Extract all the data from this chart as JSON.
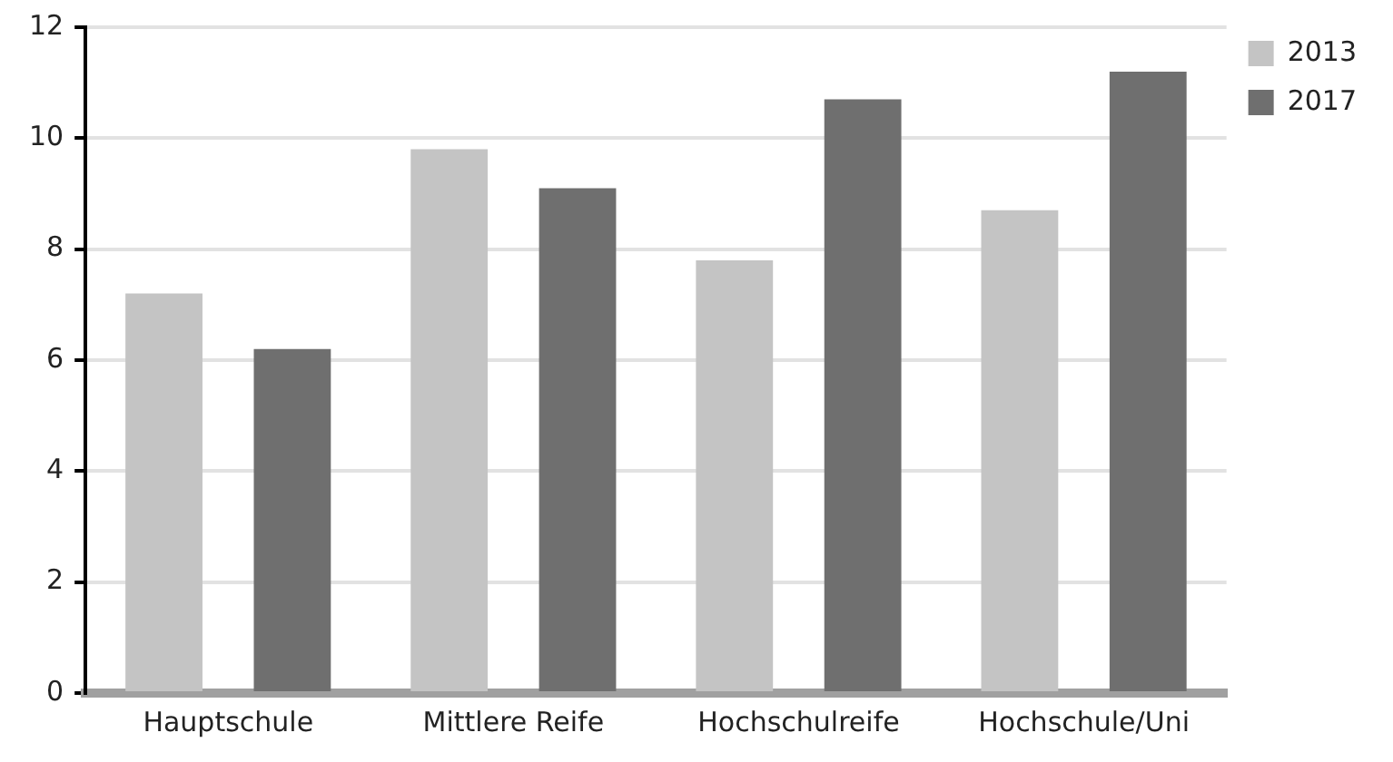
{
  "chart_data": {
    "type": "bar",
    "categories": [
      "Hauptschule",
      "Mittlere Reife",
      "Hochschulreife",
      "Hochschule/Uni"
    ],
    "series": [
      {
        "name": "2013",
        "color": "#c4c4c4",
        "values": [
          7.2,
          9.8,
          7.8,
          8.7
        ]
      },
      {
        "name": "2017",
        "color": "#6f6f6f",
        "values": [
          6.2,
          9.1,
          10.7,
          11.2
        ]
      }
    ],
    "ylim": [
      0,
      12
    ],
    "yticks": [
      0,
      2,
      4,
      6,
      8,
      10,
      12
    ],
    "grid": "y",
    "legend": "top right"
  }
}
